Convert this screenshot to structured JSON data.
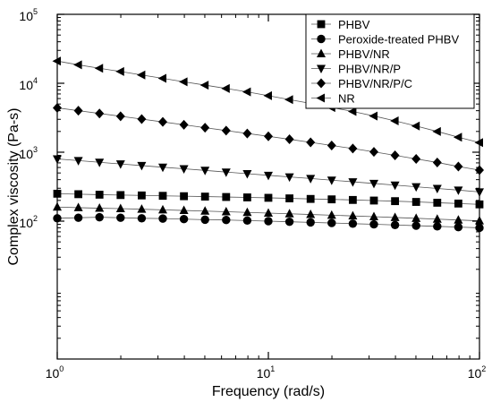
{
  "chart_data": {
    "type": "scatter",
    "xlabel": "Frequency (rad/s)",
    "ylabel": "Complex viscosity (Pa-s)",
    "x_scale": "log",
    "y_scale": "log",
    "xlim": [
      1,
      100
    ],
    "ylim": [
      1,
      100000
    ],
    "x_ticks": [
      {
        "value": 1,
        "base": "10",
        "exp": "0"
      },
      {
        "value": 10,
        "base": "10",
        "exp": "1"
      },
      {
        "value": 100,
        "base": "10",
        "exp": "2"
      }
    ],
    "y_ticks": [
      {
        "value": 100,
        "base": "10",
        "exp": "2"
      },
      {
        "value": 1000,
        "base": "10",
        "exp": "3"
      },
      {
        "value": 10000,
        "base": "10",
        "exp": "4"
      },
      {
        "value": 100000,
        "base": "10",
        "exp": "5"
      }
    ],
    "legend_position": "top-right",
    "grid": false,
    "x": [
      1.0,
      1.259,
      1.585,
      1.995,
      2.512,
      3.162,
      3.981,
      5.012,
      6.31,
      7.943,
      10.0,
      12.59,
      15.85,
      19.95,
      25.12,
      31.62,
      39.81,
      50.12,
      63.1,
      79.43,
      100.0
    ],
    "series": [
      {
        "name": "PHBV",
        "marker": "square",
        "values": [
          250,
          246,
          242,
          239,
          236,
          233,
          230,
          227,
          224,
          221,
          218,
          214,
          210,
          207,
          203,
          199,
          195,
          190,
          185,
          180,
          175
        ]
      },
      {
        "name": "Peroxide-treated PHBV",
        "marker": "circle",
        "values": [
          110,
          112,
          114,
          112,
          110,
          109,
          107,
          105,
          104,
          102,
          100,
          98,
          96,
          94,
          92,
          90,
          88,
          86,
          84,
          82,
          80
        ]
      },
      {
        "name": "PHBV/NR",
        "marker": "triangle-up",
        "values": [
          160,
          157,
          154,
          152,
          149,
          146,
          143,
          140,
          137,
          134,
          131,
          128,
          125,
          122,
          119,
          116,
          113,
          110,
          107,
          104,
          101
        ]
      },
      {
        "name": "PHBV/NR/P",
        "marker": "triangle-down",
        "values": [
          800,
          755,
          715,
          675,
          640,
          605,
          575,
          545,
          515,
          488,
          462,
          438,
          415,
          393,
          372,
          352,
          333,
          315,
          298,
          282,
          265
        ]
      },
      {
        "name": "PHBV/NR/P/C",
        "marker": "diamond",
        "values": [
          4400,
          4000,
          3650,
          3320,
          3020,
          2750,
          2500,
          2270,
          2060,
          1870,
          1700,
          1540,
          1390,
          1250,
          1130,
          1010,
          900,
          800,
          710,
          620,
          550
        ]
      },
      {
        "name": "NR",
        "marker": "triangle-left",
        "values": [
          21000,
          18500,
          16500,
          14800,
          13200,
          11800,
          10500,
          9400,
          8400,
          7500,
          6600,
          5800,
          5100,
          4450,
          3900,
          3350,
          2850,
          2400,
          2000,
          1650,
          1380
        ]
      }
    ]
  }
}
